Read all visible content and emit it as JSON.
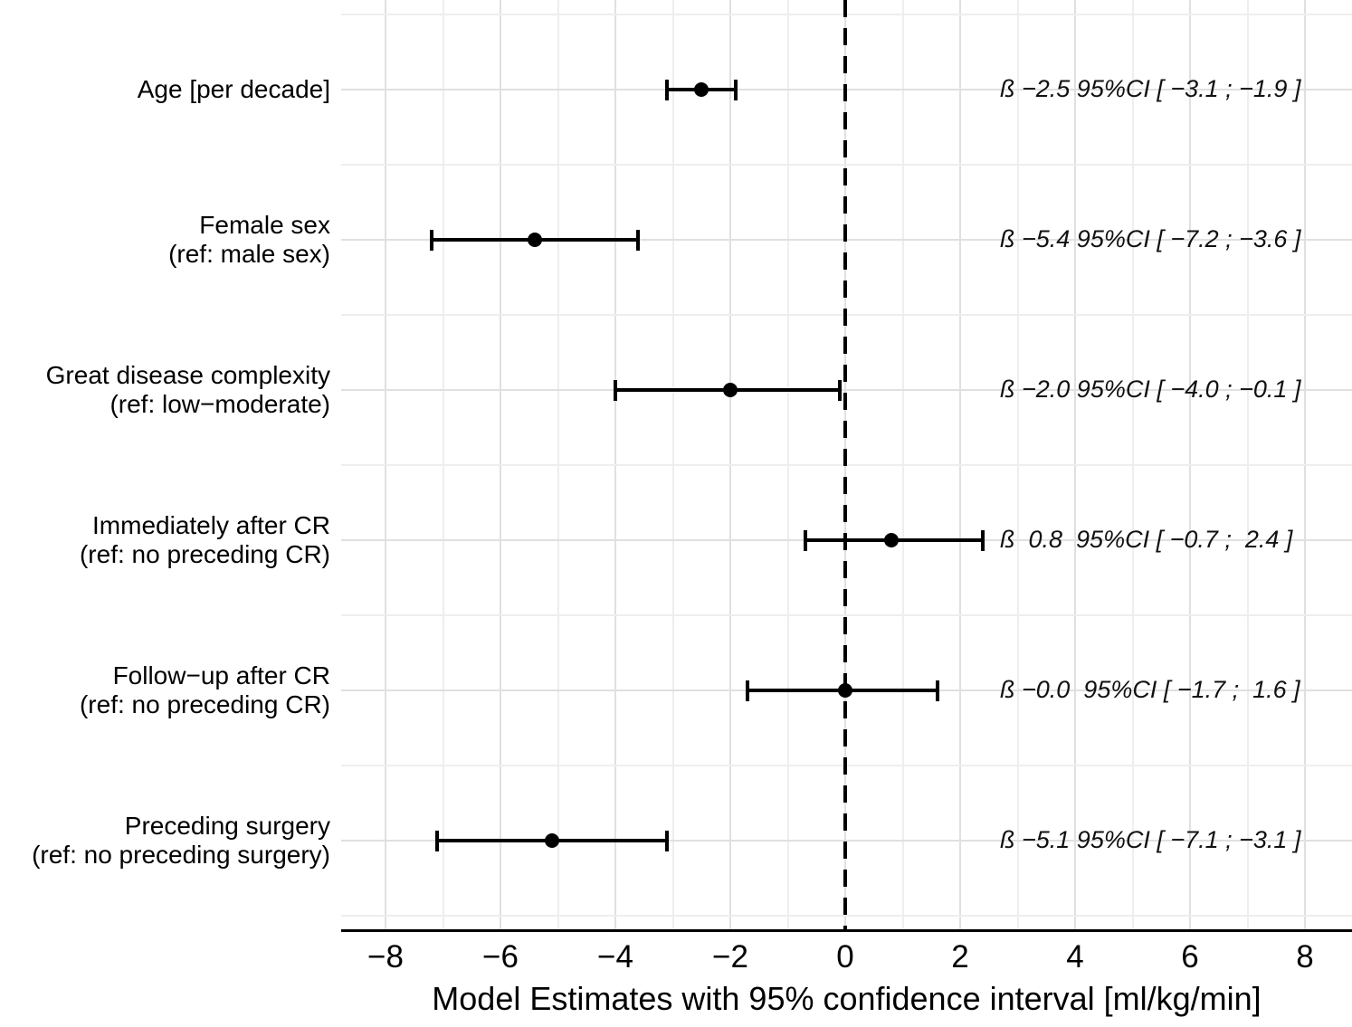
{
  "chart_data": {
    "type": "scatter",
    "subtype": "forest-plot-with-error-bars",
    "title": "",
    "xlabel": "Model Estimates with 95% confidence interval [ml/kg/min]",
    "ylabel": "",
    "xlim": [
      -8.8,
      8.8
    ],
    "x_major_ticks": [
      -8,
      -6,
      -4,
      -2,
      0,
      2,
      4,
      6,
      8
    ],
    "x_tick_labels": [
      "−8",
      "−6",
      "−4",
      "−2",
      "0",
      "2",
      "4",
      "6",
      "8"
    ],
    "x_minor_tick_step": 1,
    "reference_line_x": 0,
    "reference_line_style": "dashed",
    "grid": true,
    "legend": false,
    "rows": [
      {
        "label_lines": [
          "Age [per decade]"
        ],
        "estimate": -2.5,
        "ci_low": -3.1,
        "ci_high": -1.9,
        "annotation": "ß −2.5 95%CI [ −3.1 ; −1.9 ]"
      },
      {
        "label_lines": [
          "Female sex",
          "(ref: male sex)"
        ],
        "estimate": -5.4,
        "ci_low": -7.2,
        "ci_high": -3.6,
        "annotation": "ß −5.4 95%CI [ −7.2 ; −3.6 ]"
      },
      {
        "label_lines": [
          "Great disease complexity",
          "(ref: low−moderate)"
        ],
        "estimate": -2.0,
        "ci_low": -4.0,
        "ci_high": -0.1,
        "annotation": "ß −2.0 95%CI [ −4.0 ; −0.1 ]"
      },
      {
        "label_lines": [
          "Immediately after CR",
          "(ref: no preceding CR)"
        ],
        "estimate": 0.8,
        "ci_low": -0.7,
        "ci_high": 2.4,
        "annotation": "ß  0.8  95%CI [ −0.7 ;  2.4 ]"
      },
      {
        "label_lines": [
          "Follow−up after CR",
          "(ref: no preceding CR)"
        ],
        "estimate": -0.0,
        "ci_low": -1.7,
        "ci_high": 1.6,
        "annotation": "ß −0.0  95%CI [ −1.7 ;  1.6 ]"
      },
      {
        "label_lines": [
          "Preceding surgery",
          "(ref: no preceding surgery)"
        ],
        "estimate": -5.1,
        "ci_low": -7.1,
        "ci_high": -3.1,
        "annotation": "ß −5.1 95%CI [ −7.1 ; −3.1 ]"
      }
    ],
    "colors": {
      "background": "#ffffff",
      "point": "#000000",
      "error_bar": "#000000",
      "grid_major": "#e0e0e0",
      "grid_minor": "#eeeeee",
      "axis": "#000000",
      "reference_line": "#000000",
      "text": "#000000"
    }
  }
}
